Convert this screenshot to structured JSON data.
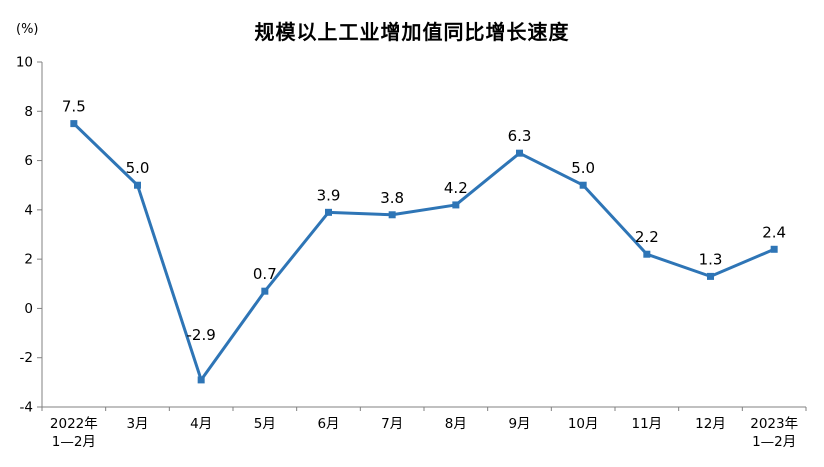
{
  "chart_data": {
    "type": "line",
    "title": "规模以上工业增加值同比增长速度",
    "ylabel": "(%)",
    "xlabel": "",
    "categories": [
      "2022年\n1—2月",
      "3月",
      "4月",
      "5月",
      "6月",
      "7月",
      "8月",
      "9月",
      "10月",
      "11月",
      "12月",
      "2023年\n1—2月"
    ],
    "values": [
      7.5,
      5.0,
      -2.9,
      0.7,
      3.9,
      3.8,
      4.2,
      6.3,
      5.0,
      2.2,
      1.3,
      2.4
    ],
    "labels": [
      "7.5",
      "5.0",
      "-2.9",
      "0.7",
      "3.9",
      "3.8",
      "4.2",
      "6.3",
      "5.0",
      "2.2",
      "1.3",
      "2.4"
    ],
    "ylim": [
      -4,
      10
    ],
    "y_tick_step": 2,
    "grid": false,
    "legend": "none",
    "line_color": "#2E75B6",
    "axis_color": "#808080",
    "marker": "square"
  }
}
